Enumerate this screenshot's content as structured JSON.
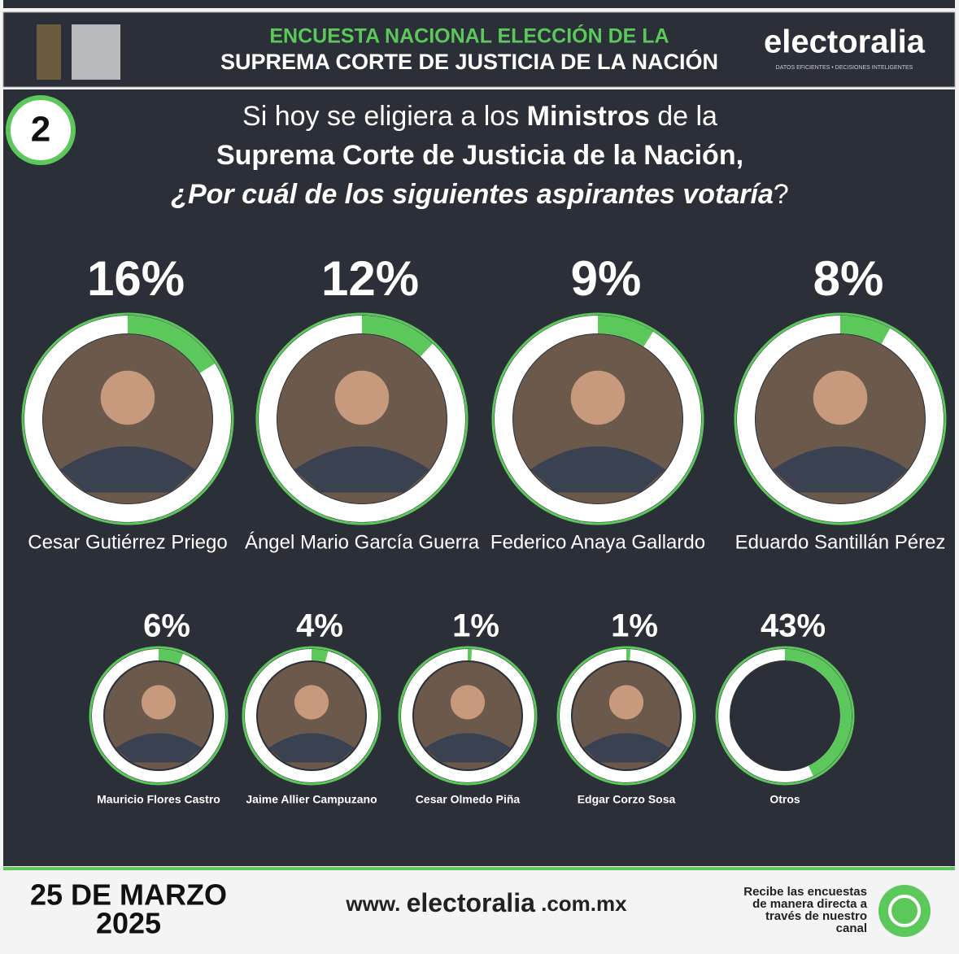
{
  "header": {
    "line1": "ENCUESTA NACIONAL  ELECCIÓN DE LA",
    "line2": "SUPREMA CORTE DE JUSTICIA DE LA NACIÓN",
    "brand": "electoralia",
    "tagline": "DATOS EFICIENTES • DECISIONES INTELIGENTES"
  },
  "badge": "2",
  "question": [
    [
      {
        "text": "Si hoy se eligiera a los ",
        "style": "regular"
      },
      {
        "text": "Ministros",
        "style": "bold"
      },
      {
        "text": " de la",
        "style": "regular"
      }
    ],
    [
      {
        "text": "Suprema Corte de Justicia de la Nación,",
        "style": "bold"
      }
    ],
    [
      {
        "text": "¿Por cuál de los siguientes aspirantes votaría",
        "style": "bold-italic"
      },
      {
        "text": "?",
        "style": "regular"
      }
    ]
  ],
  "chart_data": {
    "type": "donut",
    "color": "#5cc85c",
    "categories": [
      "Cesar Gutiérrez Priego",
      "Ángel Mario García Guerra",
      "Federico Anaya Gallardo",
      "Eduardo Santillán Pérez",
      "Mauricio Flores Castro",
      "Jaime Allier Campuzano",
      "Cesar Olmedo Piña",
      "Edgar Corzo Sosa",
      "Otros"
    ],
    "values": [
      16,
      12,
      9,
      8,
      6,
      4,
      1,
      1,
      43
    ],
    "value_labels": [
      "16%",
      "12%",
      "9%",
      "8%",
      "6%",
      "4%",
      "1%",
      "1%",
      "43%"
    ]
  },
  "footer": {
    "date1": "25 DE MARZO",
    "date2": "2025",
    "url": [
      "www. ",
      "electoralia",
      " .com.mx"
    ],
    "cta": [
      "Recibe las encuestas",
      "de manera directa a",
      "través de nuestro",
      "canal"
    ]
  }
}
